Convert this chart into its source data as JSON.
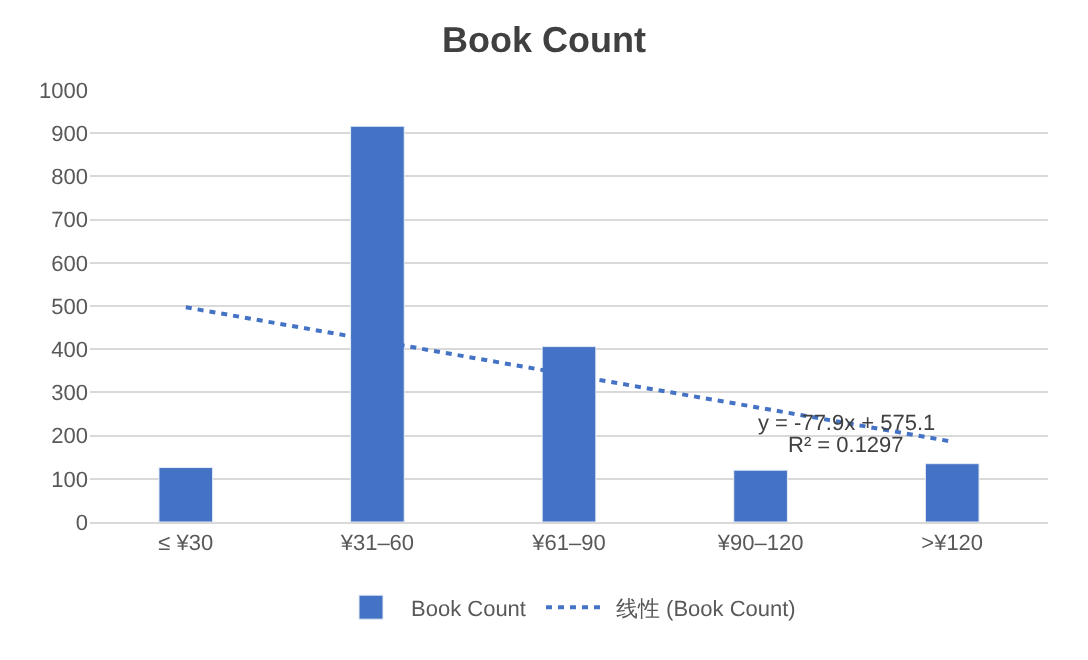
{
  "chart_data": {
    "type": "bar",
    "title": "Book Count",
    "categories": [
      "≤ ¥30",
      "¥31–60",
      "¥61–90",
      "¥90–120",
      ">¥120"
    ],
    "series": [
      {
        "name": "Book Count",
        "color": "#4472c4",
        "values": [
          126,
          916,
          406,
          120,
          135
        ]
      },
      {
        "name": "线性 (Book Count)",
        "type": "line",
        "color": "#4472c4",
        "line_style": "dotted",
        "marker": "none",
        "values": [
          497,
          419,
          341,
          264,
          186
        ]
      }
    ],
    "ylim": [
      0,
      1000
    ],
    "yticks": [
      0,
      100,
      200,
      300,
      400,
      500,
      600,
      700,
      800,
      900,
      1000
    ],
    "grid": "y",
    "legend": "bottom",
    "annotations": [
      "y = -77.9x + 575.1",
      "R² = 0.1297"
    ]
  }
}
